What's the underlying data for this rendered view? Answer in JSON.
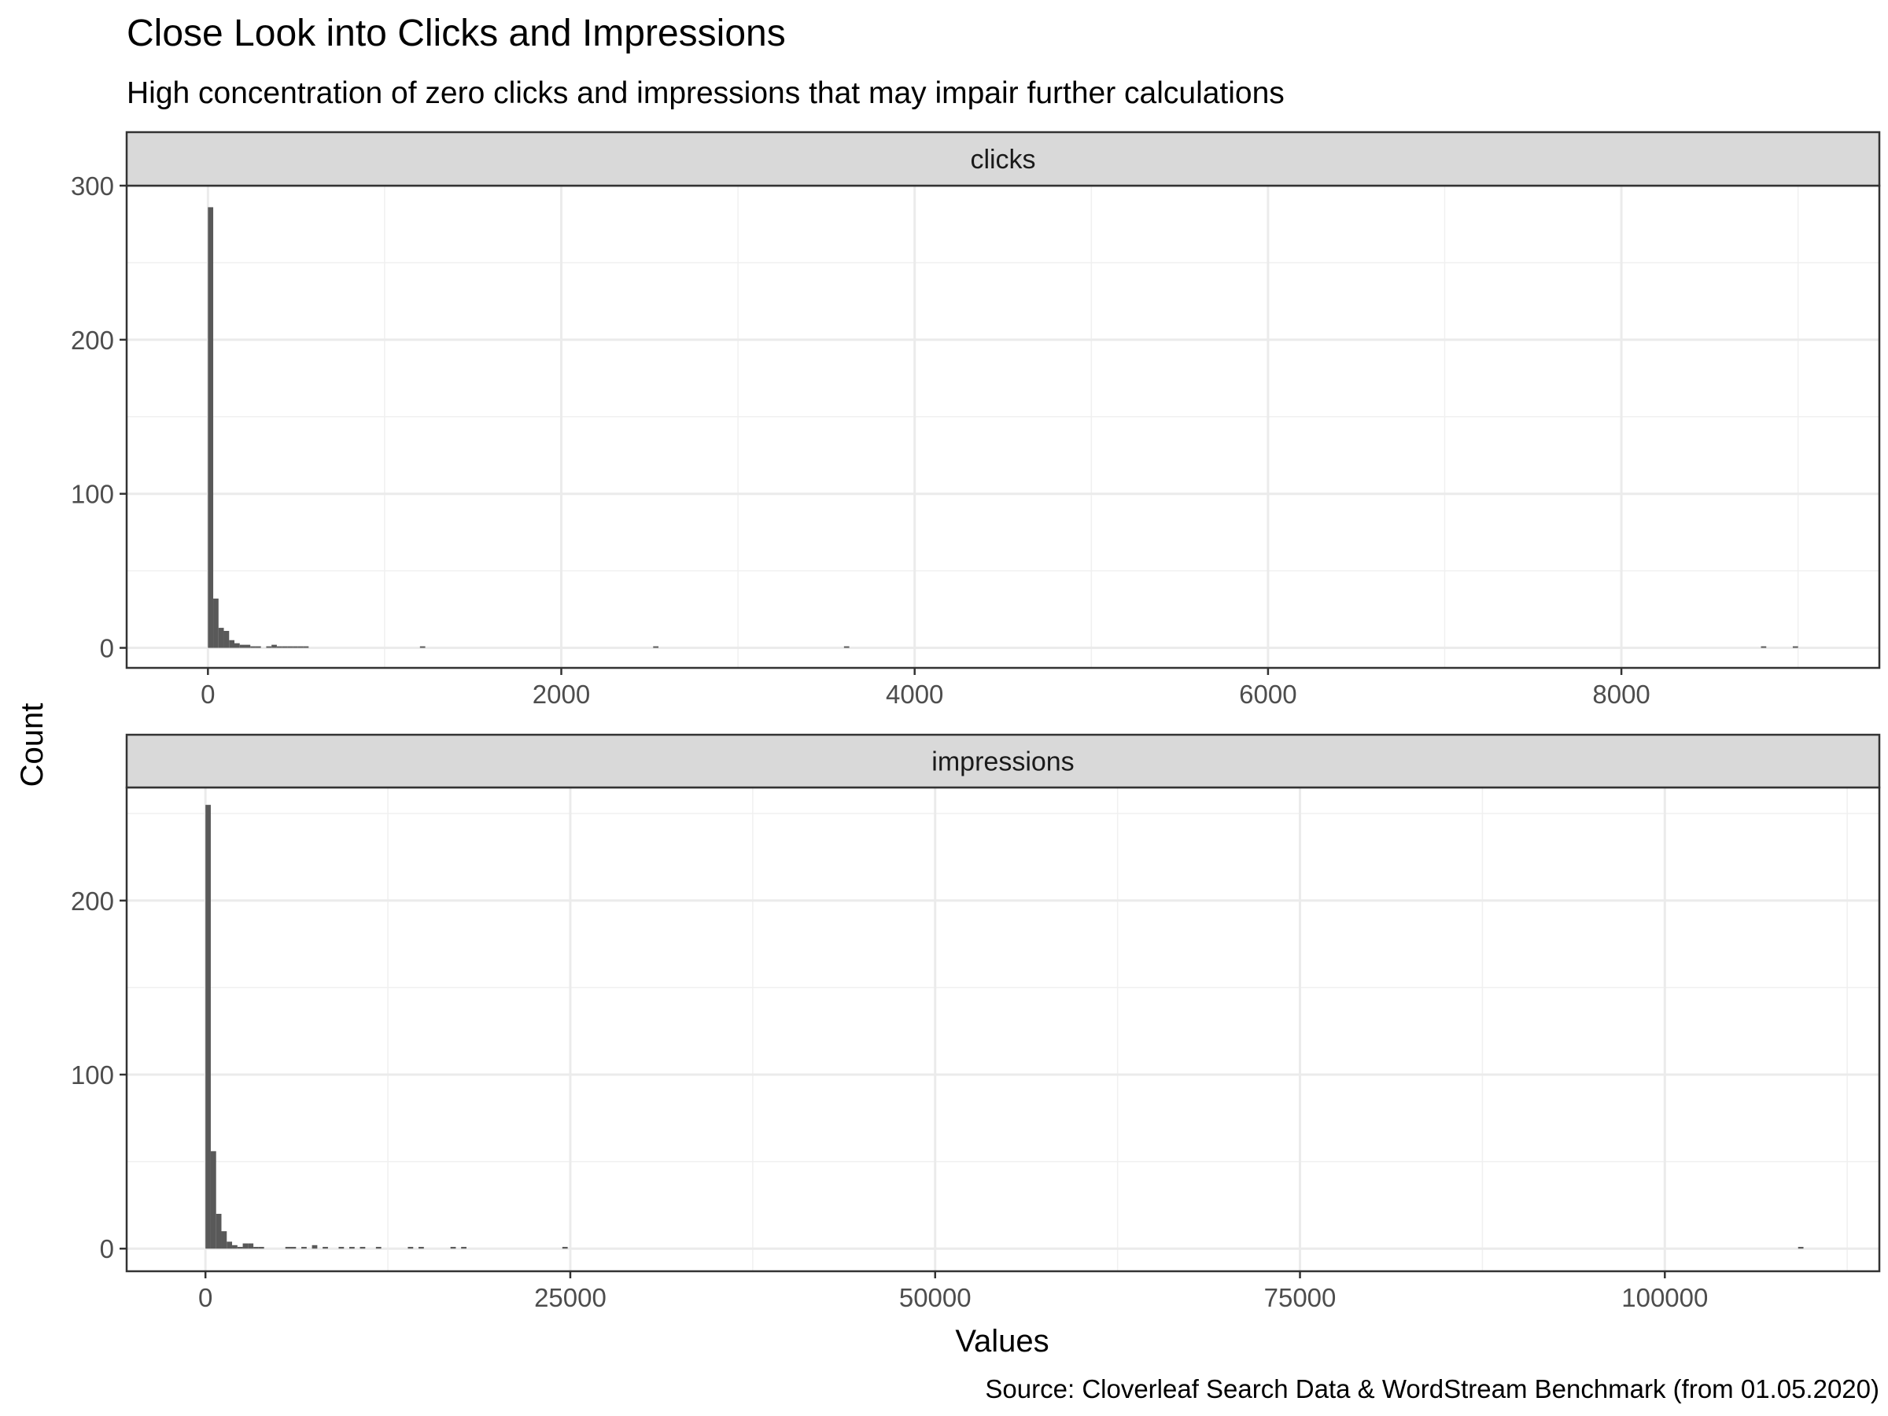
{
  "chart_data": {
    "type": "bar",
    "title": "Close Look into Clicks and Impressions",
    "subtitle": "High concentration of zero clicks and impressions that may impair further calculations",
    "xlabel": "Values",
    "ylabel": "Count",
    "caption": "Source: Cloverleaf Search Data & WordStream Benchmark (from 01.05.2020)",
    "grid": true,
    "panels": [
      {
        "strip_label": "clicks",
        "xlim": [
          -460,
          9460
        ],
        "ylim": [
          -13,
          300
        ],
        "x_ticks": [
          0,
          2000,
          4000,
          6000,
          8000
        ],
        "x_tick_labels": [
          "0",
          "2000",
          "4000",
          "6000",
          "8000"
        ],
        "y_ticks": [
          0,
          100,
          200,
          300
        ],
        "y_tick_labels": [
          "0",
          "100",
          "200",
          "300"
        ],
        "bin_width": 30,
        "bins": [
          {
            "x": 0,
            "count": 286
          },
          {
            "x": 30,
            "count": 32
          },
          {
            "x": 60,
            "count": 13
          },
          {
            "x": 90,
            "count": 11
          },
          {
            "x": 120,
            "count": 5
          },
          {
            "x": 150,
            "count": 3
          },
          {
            "x": 180,
            "count": 2
          },
          {
            "x": 210,
            "count": 2
          },
          {
            "x": 240,
            "count": 1
          },
          {
            "x": 270,
            "count": 1
          },
          {
            "x": 330,
            "count": 1
          },
          {
            "x": 360,
            "count": 2
          },
          {
            "x": 390,
            "count": 1
          },
          {
            "x": 420,
            "count": 1
          },
          {
            "x": 450,
            "count": 1
          },
          {
            "x": 480,
            "count": 1
          },
          {
            "x": 510,
            "count": 1
          },
          {
            "x": 540,
            "count": 1
          },
          {
            "x": 1200,
            "count": 1
          },
          {
            "x": 2520,
            "count": 1
          },
          {
            "x": 3600,
            "count": 1
          },
          {
            "x": 8790,
            "count": 1
          },
          {
            "x": 8970,
            "count": 1
          }
        ]
      },
      {
        "strip_label": "impressions",
        "xlim": [
          -5400,
          114700
        ],
        "ylim": [
          -13,
          265
        ],
        "x_ticks": [
          0,
          25000,
          50000,
          75000,
          100000
        ],
        "x_tick_labels": [
          "0",
          "25000",
          "50000",
          "75000",
          "100000"
        ],
        "y_ticks": [
          0,
          100,
          200
        ],
        "y_tick_labels": [
          "0",
          "100",
          "200"
        ],
        "bin_width": 365,
        "bins": [
          {
            "x": 0,
            "count": 255
          },
          {
            "x": 365,
            "count": 56
          },
          {
            "x": 730,
            "count": 20
          },
          {
            "x": 1095,
            "count": 10
          },
          {
            "x": 1460,
            "count": 4
          },
          {
            "x": 1825,
            "count": 2
          },
          {
            "x": 2190,
            "count": 1
          },
          {
            "x": 2555,
            "count": 3
          },
          {
            "x": 2920,
            "count": 3
          },
          {
            "x": 3285,
            "count": 1
          },
          {
            "x": 3650,
            "count": 1
          },
          {
            "x": 5475,
            "count": 1
          },
          {
            "x": 5840,
            "count": 1
          },
          {
            "x": 6570,
            "count": 1
          },
          {
            "x": 7300,
            "count": 2
          },
          {
            "x": 8030,
            "count": 1
          },
          {
            "x": 9125,
            "count": 1
          },
          {
            "x": 9855,
            "count": 1
          },
          {
            "x": 10585,
            "count": 1
          },
          {
            "x": 11680,
            "count": 1
          },
          {
            "x": 13870,
            "count": 1
          },
          {
            "x": 14600,
            "count": 1
          },
          {
            "x": 16790,
            "count": 1
          },
          {
            "x": 17520,
            "count": 1
          },
          {
            "x": 24455,
            "count": 1
          },
          {
            "x": 109135,
            "count": 1
          }
        ]
      }
    ]
  }
}
